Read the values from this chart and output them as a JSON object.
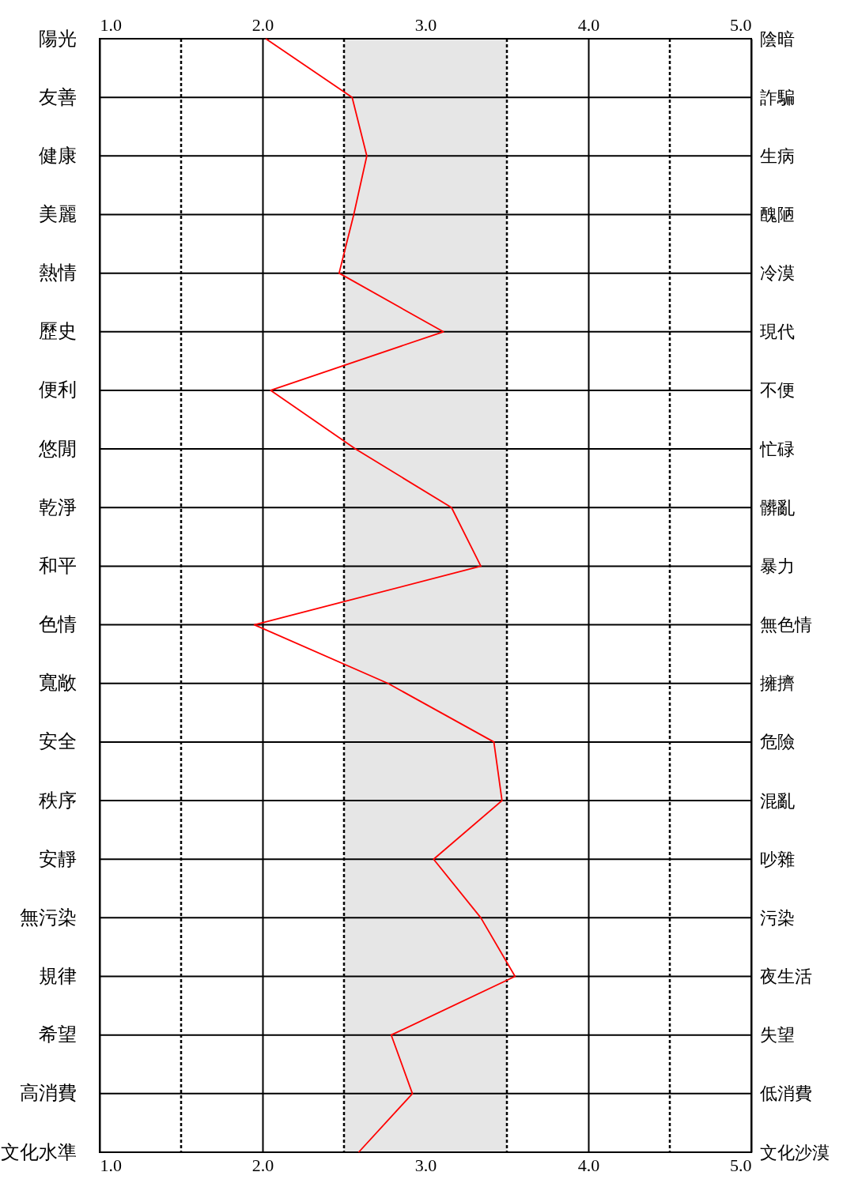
{
  "chart_data": {
    "type": "line",
    "orientation": "horizontal",
    "categories": [
      "陽光",
      "友善",
      "健康",
      "美麗",
      "熱情",
      "歷史",
      "便利",
      "悠閒",
      "乾淨",
      "和平",
      "色情",
      "寬敞",
      "安全",
      "秩序",
      "安靜",
      "無污染",
      "規律",
      "希望",
      "高消費",
      "文化水準"
    ],
    "y2_categories": [
      "陰暗",
      "詐騙",
      "生病",
      "醜陋",
      "冷漠",
      "現代",
      "不便",
      "忙碌",
      "髒亂",
      "暴力",
      "無色情",
      "擁擠",
      "危險",
      "混亂",
      "吵雜",
      "污染",
      "夜生活",
      "失望",
      "低消費",
      "文化沙漠"
    ],
    "series": [
      {
        "color": "#ff0000",
        "values": [
          2.02,
          2.55,
          2.64,
          2.56,
          2.47,
          3.11,
          2.05,
          2.57,
          3.16,
          3.34,
          1.95,
          2.77,
          3.42,
          3.47,
          3.05,
          3.34,
          3.55,
          2.79,
          2.92,
          2.59
        ]
      }
    ],
    "xlim": [
      1,
      5
    ],
    "xticks": [
      {
        "value": 1,
        "label": "1.0"
      },
      {
        "value": 2,
        "label": "2.0"
      },
      {
        "value": 3,
        "label": "3.0"
      },
      {
        "value": 4,
        "label": "4.0"
      },
      {
        "value": 5,
        "label": "5.0"
      }
    ],
    "x2lim": [
      1,
      5
    ],
    "x2ticks": [
      {
        "value": 1,
        "label": "1.0"
      },
      {
        "value": 2,
        "label": "2.0"
      },
      {
        "value": 3,
        "label": "3.0"
      },
      {
        "value": 4,
        "label": "4.0"
      },
      {
        "value": 5,
        "label": "5.0"
      }
    ],
    "ref_lines": [
      {
        "axis": "x",
        "value": 1.5,
        "color": "#000000",
        "line_style": "dashed"
      },
      {
        "axis": "x",
        "value": 2.5,
        "color": "#000000",
        "line_style": "dashed"
      },
      {
        "axis": "x",
        "value": 3.5,
        "color": "#000000",
        "line_style": "dashed"
      },
      {
        "axis": "x",
        "value": 4.5,
        "color": "#000000",
        "line_style": "dashed"
      }
    ],
    "bands": [
      {
        "axis": "x",
        "from": 2.5,
        "to": 3.5,
        "color": "#e6e6e6"
      }
    ],
    "grid": true
  }
}
